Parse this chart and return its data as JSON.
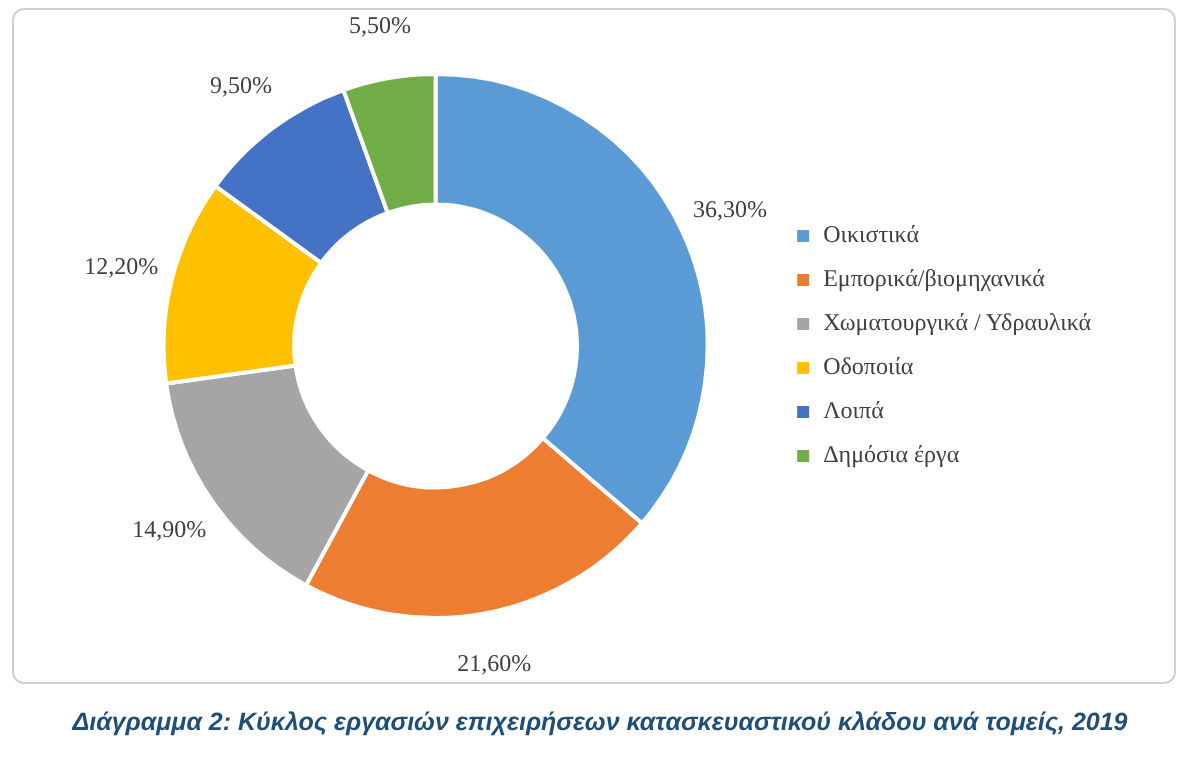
{
  "chart_data": {
    "type": "donut",
    "categories": [
      "Οικιστικά",
      "Εμπορικά/βιομηχανικά",
      "Χωματουργικά / Υδραυλικά",
      "Οδοποιία",
      "Λοιπά",
      "Δημόσια έργα"
    ],
    "values": [
      36.3,
      21.6,
      14.9,
      12.2,
      9.5,
      5.5
    ],
    "colors": [
      "#5b9bd5",
      "#ed7d31",
      "#a5a5a5",
      "#ffc000",
      "#4472c4",
      "#70ad47"
    ],
    "value_labels": [
      "36,30%",
      "21,60%",
      "14,90%",
      "12,20%",
      "9,50%",
      "5,50%"
    ],
    "legend": "right",
    "annotations": [
      "Διάγραμμα 2: Κύκλος εργασιών επιχειρήσεων κατασκευαστικού κλάδου ανά τομείς, 2019"
    ]
  }
}
